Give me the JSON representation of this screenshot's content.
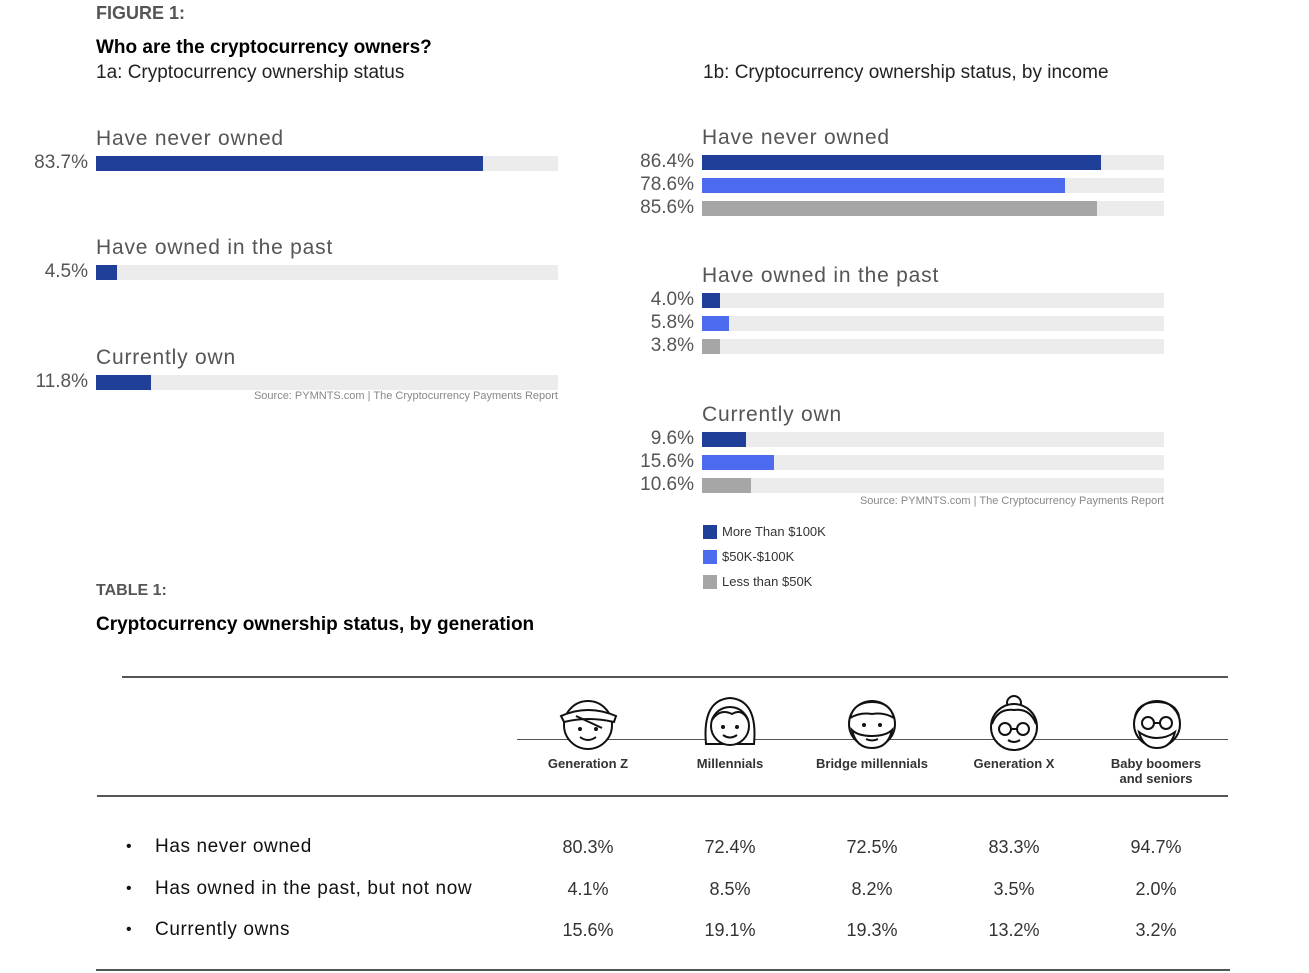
{
  "figure": {
    "label": "FIGURE 1:",
    "title": "Who are the cryptocurrency owners?"
  },
  "chart_data": [
    {
      "type": "bar",
      "orientation": "horizontal",
      "title": "1a: Cryptocurrency ownership status",
      "categories": [
        "Have never owned",
        "Have owned in the past",
        "Currently own"
      ],
      "values": [
        83.7,
        4.5,
        11.8
      ],
      "value_labels": [
        "83.7%",
        "4.5%",
        "11.8%"
      ],
      "xlim": [
        0,
        100
      ],
      "color": "#1f3f99",
      "source": "Source: PYMNTS.com | The Cryptocurrency Payments Report"
    },
    {
      "type": "bar",
      "orientation": "horizontal",
      "title": "1b: Cryptocurrency ownership status, by income",
      "categories": [
        "Have never owned",
        "Have owned in the past",
        "Currently own"
      ],
      "series": [
        {
          "name": "More Than $100K",
          "color": "#1f3f99",
          "values": [
            86.4,
            4.0,
            9.6
          ],
          "value_labels": [
            "86.4%",
            "4.0%",
            "9.6%"
          ]
        },
        {
          "name": "$50K-$100K",
          "color": "#4d6bef",
          "values": [
            78.6,
            5.8,
            15.6
          ],
          "value_labels": [
            "78.6%",
            "5.8%",
            "15.6%"
          ]
        },
        {
          "name": "Less than $50K",
          "color": "#a6a6a6",
          "values": [
            85.6,
            3.8,
            10.6
          ],
          "value_labels": [
            "85.6%",
            "3.8%",
            "10.6%"
          ]
        }
      ],
      "xlim": [
        0,
        100
      ],
      "legend": "bottom-left",
      "source": "Source: PYMNTS.com | The Cryptocurrency Payments Report"
    },
    {
      "type": "table",
      "label": "TABLE 1:",
      "title": "Cryptocurrency ownership status, by generation",
      "columns": [
        {
          "name": "Generation Z",
          "icon": "gen-z-icon"
        },
        {
          "name": "Millennials",
          "icon": "millennial-icon"
        },
        {
          "name": "Bridge millennials",
          "icon": "bridge-millennial-icon"
        },
        {
          "name": "Generation X",
          "icon": "gen-x-icon"
        },
        {
          "name": "Baby boomers and seniors",
          "icon": "baby-boomer-icon"
        }
      ],
      "rows": [
        {
          "label": "Has never owned",
          "values": [
            "80.3%",
            "72.4%",
            "72.5%",
            "83.3%",
            "94.7%"
          ]
        },
        {
          "label": "Has owned in the past, but not now",
          "values": [
            "4.1%",
            "8.5%",
            "8.2%",
            "3.5%",
            "2.0%"
          ]
        },
        {
          "label": "Currently owns",
          "values": [
            "15.6%",
            "19.1%",
            "19.3%",
            "13.2%",
            "3.2%"
          ]
        }
      ],
      "bullet": "•"
    }
  ]
}
